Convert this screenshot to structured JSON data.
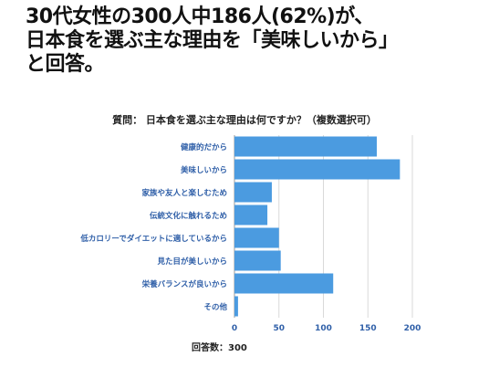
{
  "headline": {
    "line1": "30代女性の300人中186人(62%)が、",
    "line2": "日本食を選ぶ主な理由を「美味しいから」",
    "line3": "と回答。"
  },
  "chart_data": {
    "type": "bar",
    "orientation": "horizontal",
    "title": "質問： 日本食を選ぶ主な理由は何ですか？（複数選択可）",
    "categories": [
      "健康的だから",
      "美味しいから",
      "家族や友人と楽しむため",
      "伝統文化に触れるため",
      "低カロリーでダイエットに適しているから",
      "見た目が美しいから",
      "栄養バランスが良いから",
      "その他"
    ],
    "values": [
      160,
      186,
      42,
      37,
      50,
      52,
      111,
      4
    ],
    "xlim": [
      0,
      200
    ],
    "xticks": [
      0,
      50,
      100,
      150,
      200
    ],
    "grid": true,
    "bar_color": "#4b9be0",
    "label_color": "#2f5fa8",
    "footnote": "回答数：300"
  }
}
